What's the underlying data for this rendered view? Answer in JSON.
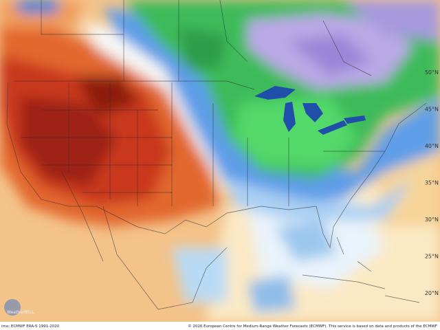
{
  "map": {
    "lat_labels": [
      "50°N",
      "45°N",
      "40°N",
      "35°N",
      "30°N",
      "25°N",
      "20°N"
    ],
    "logo": "WeatherBELL",
    "footer_left": "imo: ECMWF ERA-5 1991-2020",
    "footer_right": "© 2026 European Centre for Medium-Range Weather Forecasts (ECMWF). This service is based on data and products of the ECMWF"
  }
}
